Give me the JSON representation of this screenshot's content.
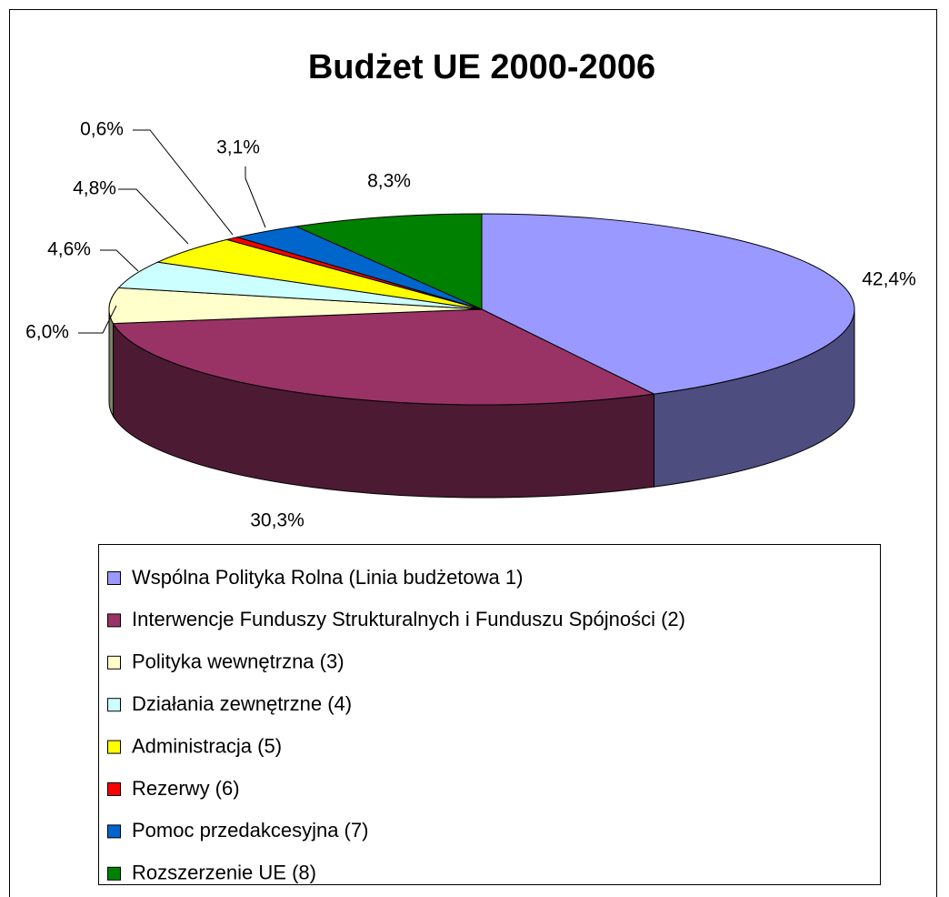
{
  "chart_data": {
    "type": "pie",
    "title": "Budżet UE 2000-2006",
    "categories": [
      "Wspólna Polityka Rolna (Linia budżetowa 1)",
      "Interwencje Funduszy Strukturalnych i Funduszu Spójności (2)",
      "Polityka wewnętrzna (3)",
      "Działania zewnętrzne (4)",
      "Administracja (5)",
      "Rezerwy (6)",
      "Pomoc przedakcesyjna (7)",
      "Rozszerzenie UE (8)"
    ],
    "values": [
      42.4,
      30.3,
      6.0,
      4.6,
      4.8,
      0.6,
      3.1,
      8.3
    ],
    "value_labels": [
      "42,4%",
      "30,3%",
      "6,0%",
      "4,6%",
      "4,8%",
      "0,6%",
      "3,1%",
      "8,3%"
    ],
    "colors": [
      "#9999ff",
      "#993366",
      "#ffffcc",
      "#ccffff",
      "#ffff00",
      "#ff0000",
      "#0066cc",
      "#008000"
    ],
    "legend": "bottom"
  }
}
